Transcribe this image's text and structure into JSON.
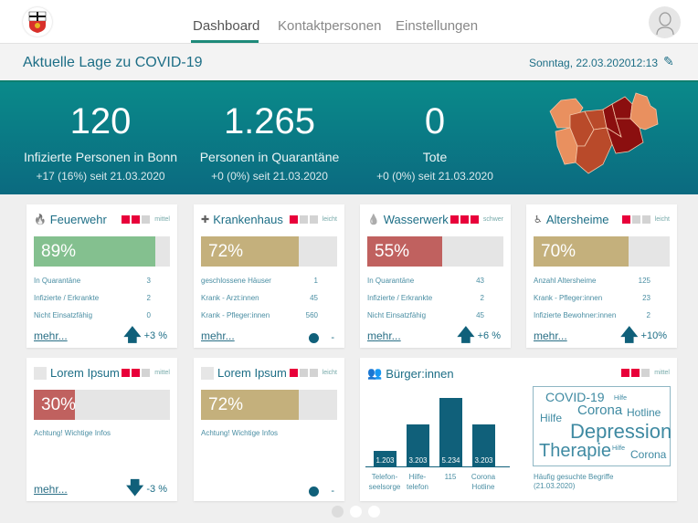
{
  "nav": {
    "tabs": [
      "Dashboard",
      "Kontaktpersonen",
      "Einstellungen"
    ],
    "active": 0
  },
  "subheader": {
    "title": "Aktuelle Lage zu COVID-19",
    "date": "Sonntag, 22.03.2020",
    "time": "12:13"
  },
  "kpis": [
    {
      "value": "120",
      "label": "Infizierte Personen in Bonn",
      "sub": "+17 (16%) seit 21.03.2020"
    },
    {
      "value": "1.265",
      "label": "Personen in Quarantäne",
      "sub": "+0 (0%) seit 21.03.2020"
    },
    {
      "value": "0",
      "label": "Tote",
      "sub": "+0 (0%) seit 21.03.2020"
    }
  ],
  "colors": {
    "accent": "#1e8a7a",
    "severity_on": "#e8003a",
    "green": "#84c08f",
    "tan": "#c4b07c",
    "red": "#c0615f",
    "dark": "#10607a"
  },
  "cards": [
    {
      "title": "Feuerwehr",
      "icon": "fire-icon",
      "severity": 2,
      "severity_label": "mittel",
      "percent": 89,
      "percent_label": "89%",
      "color": "#84c08f",
      "rows": [
        [
          "In Quarantäne",
          "3"
        ],
        [
          "Infizierte / Erkrankte",
          "2"
        ],
        [
          "Nicht Einsatzfähig",
          "0"
        ]
      ],
      "more": "mehr...",
      "trend": "up",
      "trend_label": "+3 %"
    },
    {
      "title": "Krankenhaus",
      "icon": "medical-kit-icon",
      "severity": 1,
      "severity_label": "leicht",
      "percent": 72,
      "percent_label": "72%",
      "color": "#c4b07c",
      "rows": [
        [
          "geschlossene Häuser",
          "1"
        ],
        [
          "Krank - Arzt:innen",
          "45"
        ],
        [
          "Krank - Pfleger:innen",
          "560"
        ]
      ],
      "more": "mehr...",
      "trend": "flat",
      "trend_label": "-"
    },
    {
      "title": "Wasserwerk",
      "icon": "water-drops-icon",
      "severity": 3,
      "severity_label": "schwer",
      "percent": 55,
      "percent_label": "55%",
      "color": "#c0615f",
      "rows": [
        [
          "In Quarantäne",
          "43"
        ],
        [
          "Infizierte / Erkrankte",
          "2"
        ],
        [
          "Nicht Einsatzfähig",
          "45"
        ]
      ],
      "more": "mehr...",
      "trend": "up",
      "trend_label": "+6 %"
    },
    {
      "title": "Altersheime",
      "icon": "elderly-icon",
      "severity": 1,
      "severity_label": "leicht",
      "percent": 70,
      "percent_label": "70%",
      "color": "#c4b07c",
      "rows": [
        [
          "Anzahl Altersheime",
          "125"
        ],
        [
          "Krank - Pfleger:innen",
          "23"
        ],
        [
          "Infizierte Bewohner:innen",
          "2"
        ]
      ],
      "more": "mehr...",
      "trend": "up",
      "trend_label": "+10%"
    },
    {
      "title": "Lorem Ipsum",
      "icon": "placeholder-icon",
      "severity": 2,
      "severity_label": "mittel",
      "percent": 30,
      "percent_label": "30%",
      "color": "#c0615f",
      "note": "Achtung! Wichtige Infos",
      "more": "mehr...",
      "trend": "down",
      "trend_label": "-3 %"
    },
    {
      "title": "Lorem Ipsum",
      "icon": "placeholder-icon",
      "severity": 1,
      "severity_label": "leicht",
      "percent": 72,
      "percent_label": "72%",
      "color": "#c4b07c",
      "note": "Achtung! Wichtige Infos",
      "trend": "flat",
      "trend_label": "-"
    }
  ],
  "citizens": {
    "title": "Bürger:innen",
    "severity": 2,
    "severity_label": "mittel",
    "chart_data": {
      "type": "bar",
      "categories": [
        "Telefon-\nseelsorge",
        "Hilfe-\ntelefon",
        "115",
        "Corona\nHotline"
      ],
      "values": [
        1203,
        3203,
        5234,
        3203
      ],
      "value_labels": [
        "1.203",
        "3.203",
        "5.234",
        "3.203"
      ]
    },
    "cloud": {
      "words": [
        "COVID-19",
        "Hilfe",
        "Corona",
        "Hotline",
        "Hilfe",
        "Depression",
        "Therapie",
        "Hilfe",
        "Corona"
      ],
      "caption": "Häufig gesuchte Begriffe\n(21.03.2020)"
    }
  },
  "pager": {
    "pages": 3,
    "active": 0
  }
}
